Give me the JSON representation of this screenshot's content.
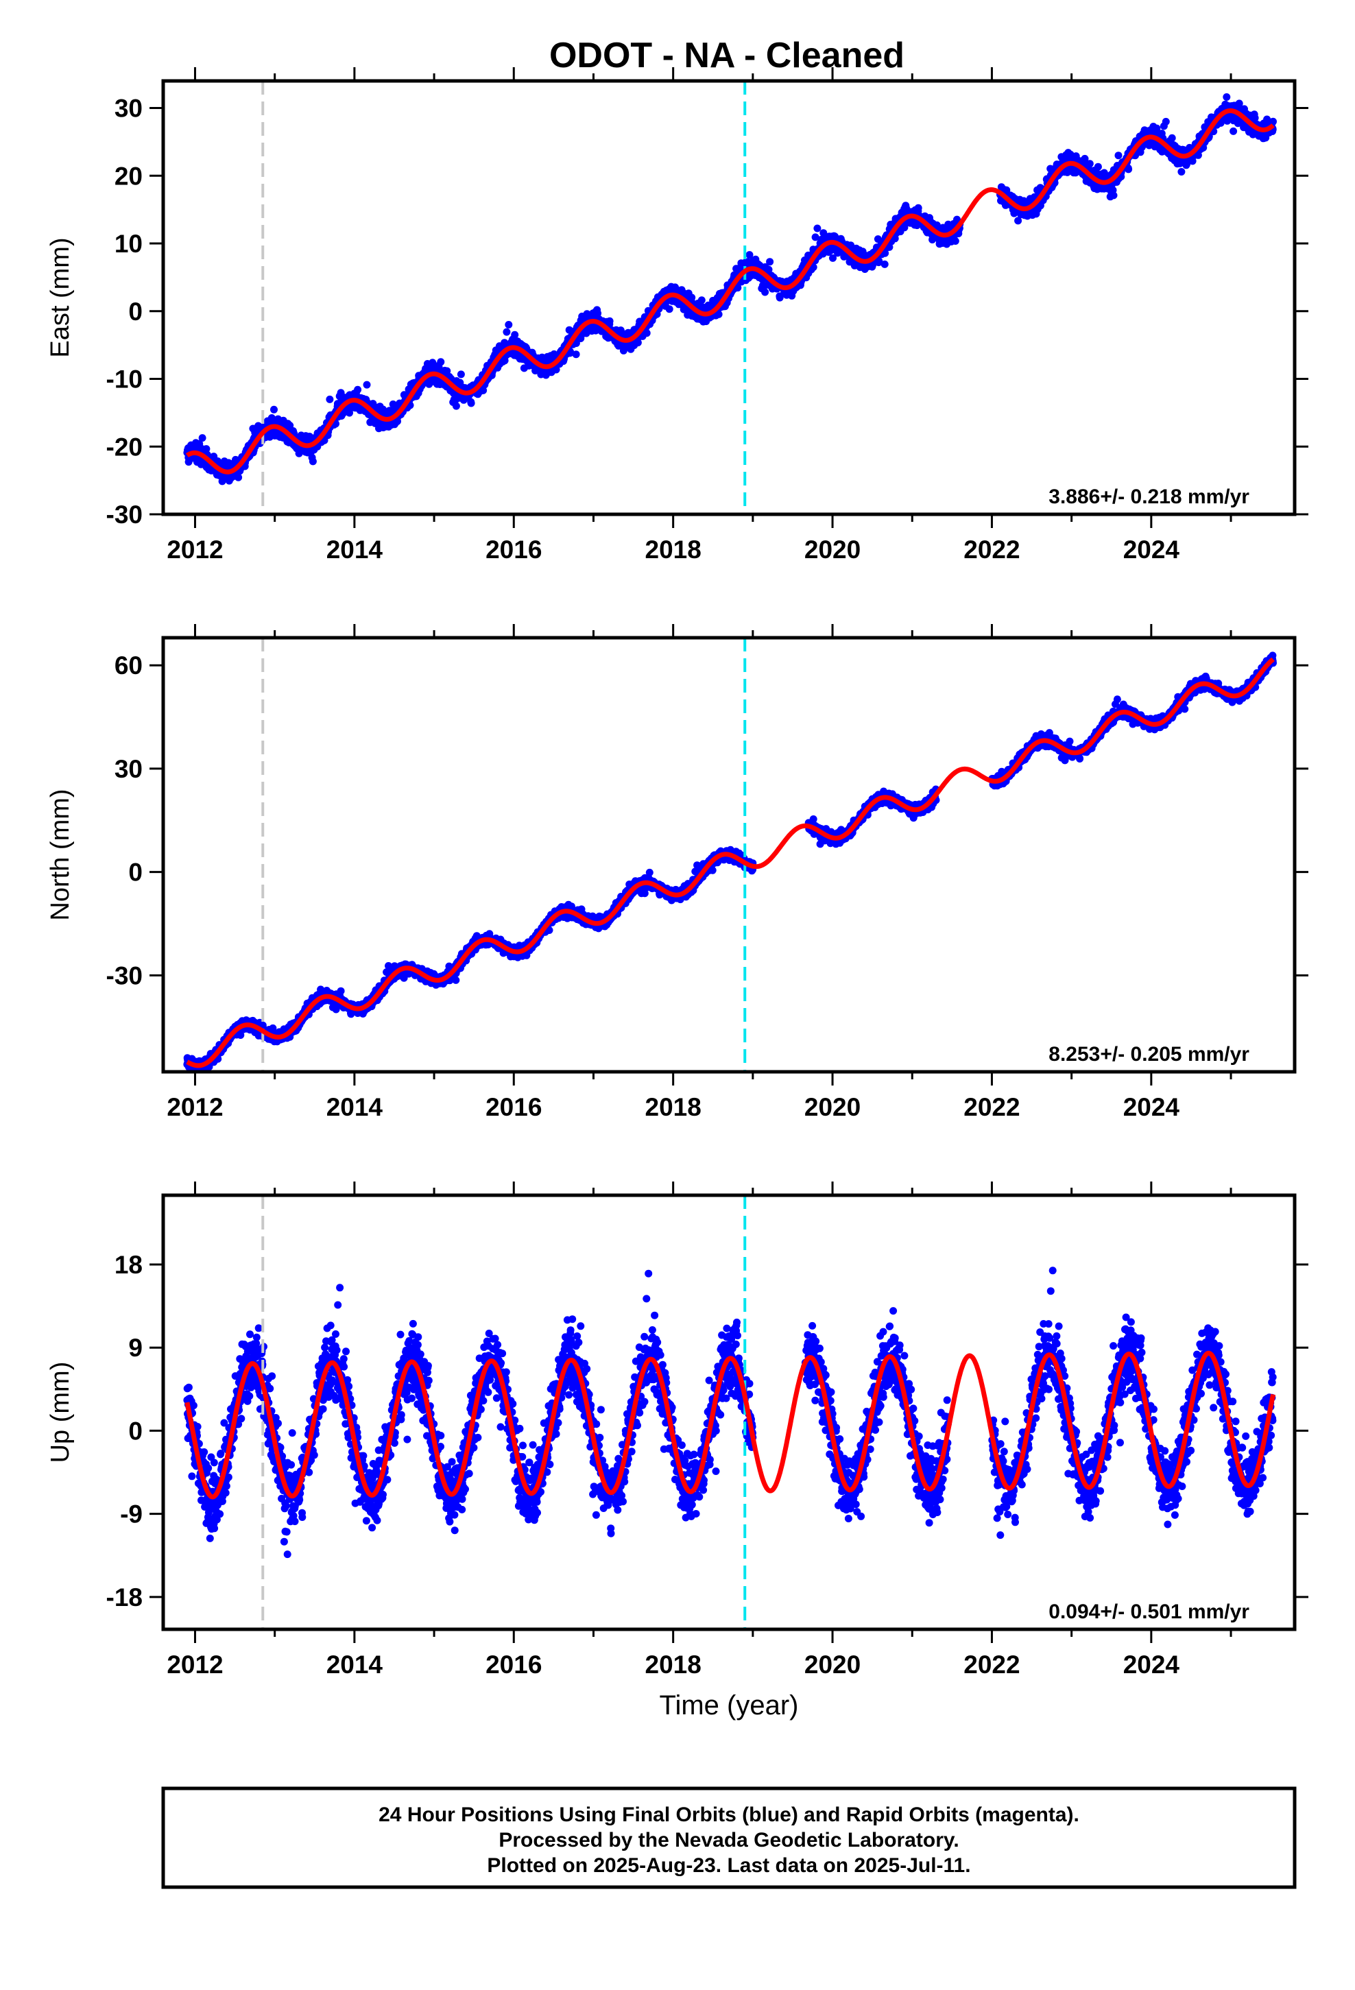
{
  "title": "ODOT  - NA - Cleaned",
  "footer": {
    "lines": [
      "24 Hour Positions Using Final Orbits (blue) and Rapid Orbits (magenta).",
      "Processed by the Nevada Geodetic Laboratory.",
      "Plotted on 2025-Aug-23. Last data on 2025-Jul-11."
    ]
  },
  "colors": {
    "data": "#0000ff",
    "model": "#ff0000",
    "equipment_change": "#c8c8c8",
    "offset_event": "#00e5ee",
    "frame": "#000000"
  },
  "chart_data": [
    {
      "type": "scatter",
      "name": "East",
      "ylabel": "East (mm)",
      "xlabel": "",
      "xlim": [
        2011.6,
        2025.8
      ],
      "ylim": [
        -30,
        34
      ],
      "xticks": [
        "2012",
        "2014",
        "2016",
        "2018",
        "2020",
        "2022",
        "2024"
      ],
      "yticks": [
        "30",
        "20",
        "10",
        "0",
        "-10",
        "-20",
        "-30"
      ],
      "yticks_values": [
        30,
        20,
        10,
        0,
        -10,
        -20,
        -30
      ],
      "rate_label": "3.886+/- 0.218 mm/yr",
      "model": {
        "rate": 3.886,
        "offset": -23.5,
        "t0": 2011.9,
        "annual_amplitude": 2.3,
        "annual_phase_peak": 0.95
      },
      "data_range": [
        2011.9,
        2025.53
      ],
      "gaps": [
        [
          2021.6,
          2022.1
        ]
      ],
      "scatter": 1.5,
      "vertical_lines": [
        {
          "x": 2012.85,
          "kind": "equipment_change"
        },
        {
          "x": 2018.9,
          "kind": "offset_event"
        }
      ]
    },
    {
      "type": "scatter",
      "name": "North",
      "ylabel": "North (mm)",
      "xlabel": "",
      "xlim": [
        2011.6,
        2025.8
      ],
      "ylim": [
        -58,
        68
      ],
      "xticks": [
        "2012",
        "2014",
        "2016",
        "2018",
        "2020",
        "2022",
        "2024"
      ],
      "yticks": [
        "60",
        "30",
        "0",
        "-30"
      ],
      "yticks_values": [
        60,
        30,
        0,
        -30
      ],
      "rate_label": "8.253+/- 0.205 mm/yr",
      "model": {
        "rate": 8.253,
        "offset": -54,
        "t0": 2011.9,
        "annual_amplitude": 3.6,
        "annual_phase_peak": 0.6
      },
      "data_range": [
        2011.9,
        2025.53
      ],
      "gaps": [
        [
          2019.0,
          2019.7
        ],
        [
          2021.3,
          2022.0
        ]
      ],
      "scatter": 1.8,
      "vertical_lines": [
        {
          "x": 2012.85,
          "kind": "equipment_change"
        },
        {
          "x": 2018.9,
          "kind": "offset_event"
        }
      ]
    },
    {
      "type": "scatter",
      "name": "Up",
      "ylabel": "Up (mm)",
      "xlabel": "Time (year)",
      "xlim": [
        2011.6,
        2025.8
      ],
      "ylim": [
        -21.5,
        25.5
      ],
      "xticks": [
        "2012",
        "2014",
        "2016",
        "2018",
        "2020",
        "2022",
        "2024"
      ],
      "yticks": [
        "18",
        "9",
        "0",
        "-9",
        "-18"
      ],
      "yticks_values": [
        18,
        9,
        0,
        -9,
        -18
      ],
      "rate_label": "0.094+/- 0.501 mm/yr",
      "model": {
        "rate": 0.094,
        "offset": 0.0,
        "t0": 2011.9,
        "annual_amplitude": 7.2,
        "annual_phase_peak": 0.72
      },
      "data_range": [
        2011.9,
        2025.53
      ],
      "gaps": [
        [
          2019.0,
          2019.65
        ],
        [
          2021.45,
          2022.0
        ]
      ],
      "scatter": 4.0,
      "vertical_lines": [
        {
          "x": 2012.85,
          "kind": "equipment_change"
        },
        {
          "x": 2018.9,
          "kind": "offset_event"
        }
      ]
    }
  ]
}
